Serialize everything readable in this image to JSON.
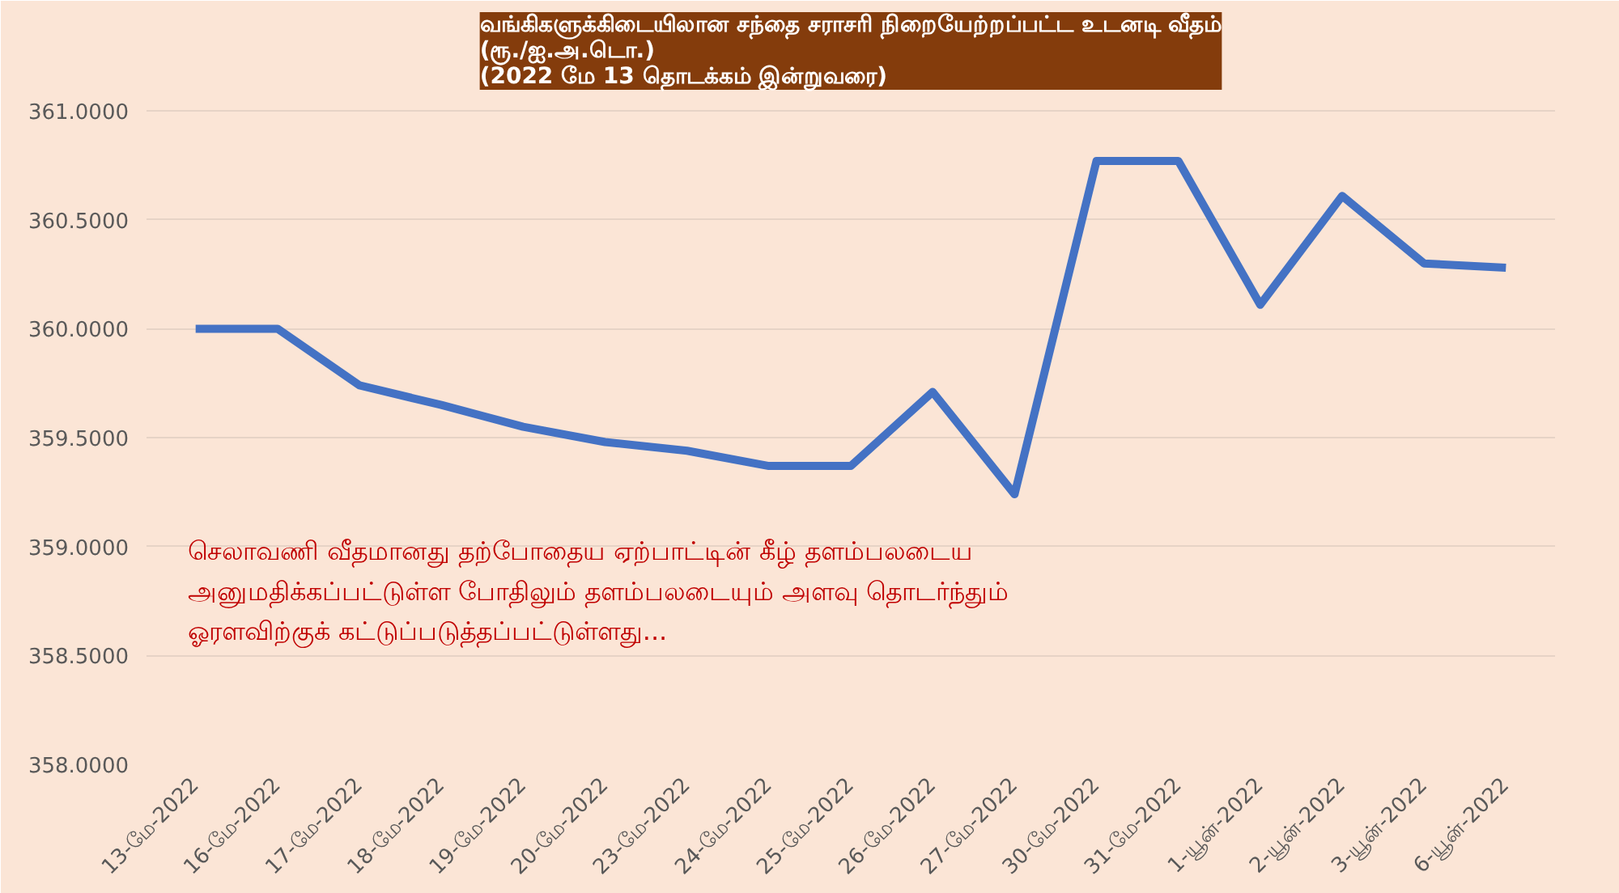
{
  "chart_data": {
    "type": "line",
    "title": "வங்கிகளுக்கிடையிலான சந்தை சராசரி நிறையேற்றப்பட்ட உடனடி வீதம்\n(ரூ./ஐ.அ.டொ.)\n(2022 மே 13 தொடக்கம் இன்றுவரை)",
    "categories": [
      "13-மே-2022",
      "16-மே-2022",
      "17-மே-2022",
      "18-மே-2022",
      "19-மே-2022",
      "20-மே-2022",
      "23-மே-2022",
      "24-மே-2022",
      "25-மே-2022",
      "26-மே-2022",
      "27-மே-2022",
      "30-மே-2022",
      "31-மே-2022",
      "1-யூன்-2022",
      "2-யூன்-2022",
      "3-யூன்-2022",
      "6-யூன்-2022"
    ],
    "series": [
      {
        "color": "#4472c4",
        "values": [
          360.0,
          360.0,
          359.74,
          359.65,
          359.55,
          359.48,
          359.44,
          359.37,
          359.37,
          359.71,
          359.24,
          360.77,
          360.77,
          360.11,
          360.61,
          360.3,
          360.28
        ]
      }
    ],
    "ylim": [
      358,
      361
    ],
    "yticks": [
      {
        "value": 358,
        "label": "358.0000"
      },
      {
        "value": 358.5,
        "label": "358.5000"
      },
      {
        "value": 359,
        "label": "359.0000"
      },
      {
        "value": 359.5,
        "label": "359.5000"
      },
      {
        "value": 360,
        "label": "360.0000"
      },
      {
        "value": 360.5,
        "label": "360.5000"
      },
      {
        "value": 361,
        "label": "361.0000"
      }
    ],
    "grid": "y",
    "marker": "none",
    "line_style": "solid",
    "annotations": [
      "செலாவணி வீதமானது தற்போதைய ஏற்பாட்டின் கீழ் தளம்பலடைய அனுமதிக்கப்பட்டுள்ள போதிலும் தளம்பலடையும் அளவு தொடர்ந்தும் ஓரளவிற்குக் கட்டுப்படுத்தப்பட்டுள்ளது..."
    ]
  }
}
